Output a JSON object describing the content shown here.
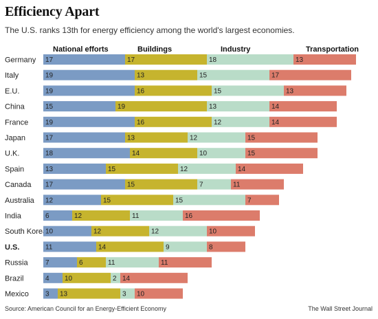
{
  "header": {
    "title": "Efficiency Apart",
    "subtitle": "The U.S. ranks 13th for energy efficiency among the world's largest economies."
  },
  "footer": {
    "source": "Source: American Council for an Energy-Efficient Economy",
    "credit": "The Wall Street Journal"
  },
  "chart_data": {
    "type": "bar",
    "stacked": true,
    "orientation": "horizontal",
    "categories": [
      "Germany",
      "Italy",
      "E.U.",
      "China",
      "France",
      "Japan",
      "U.K.",
      "Spain",
      "Canada",
      "Australia",
      "India",
      "South Korea",
      "U.S.",
      "Russia",
      "Brazil",
      "Mexico"
    ],
    "highlighted_category": "U.S.",
    "series": [
      {
        "name": "National efforts",
        "color": "#7b9bc4",
        "values": [
          17,
          19,
          19,
          15,
          19,
          17,
          18,
          13,
          17,
          12,
          6,
          10,
          11,
          7,
          4,
          3
        ]
      },
      {
        "name": "Buildings",
        "color": "#c6b42e",
        "values": [
          17,
          13,
          16,
          19,
          16,
          13,
          14,
          15,
          15,
          15,
          12,
          12,
          14,
          6,
          10,
          13
        ]
      },
      {
        "name": "Industry",
        "color": "#b9dcc8",
        "values": [
          18,
          15,
          15,
          13,
          12,
          12,
          10,
          12,
          7,
          15,
          11,
          12,
          9,
          11,
          2,
          3
        ]
      },
      {
        "name": "Transportation",
        "color": "#dc7c6b",
        "values": [
          13,
          17,
          13,
          14,
          14,
          15,
          15,
          14,
          11,
          7,
          16,
          10,
          8,
          11,
          14,
          10
        ]
      }
    ],
    "legend_position": "top"
  }
}
